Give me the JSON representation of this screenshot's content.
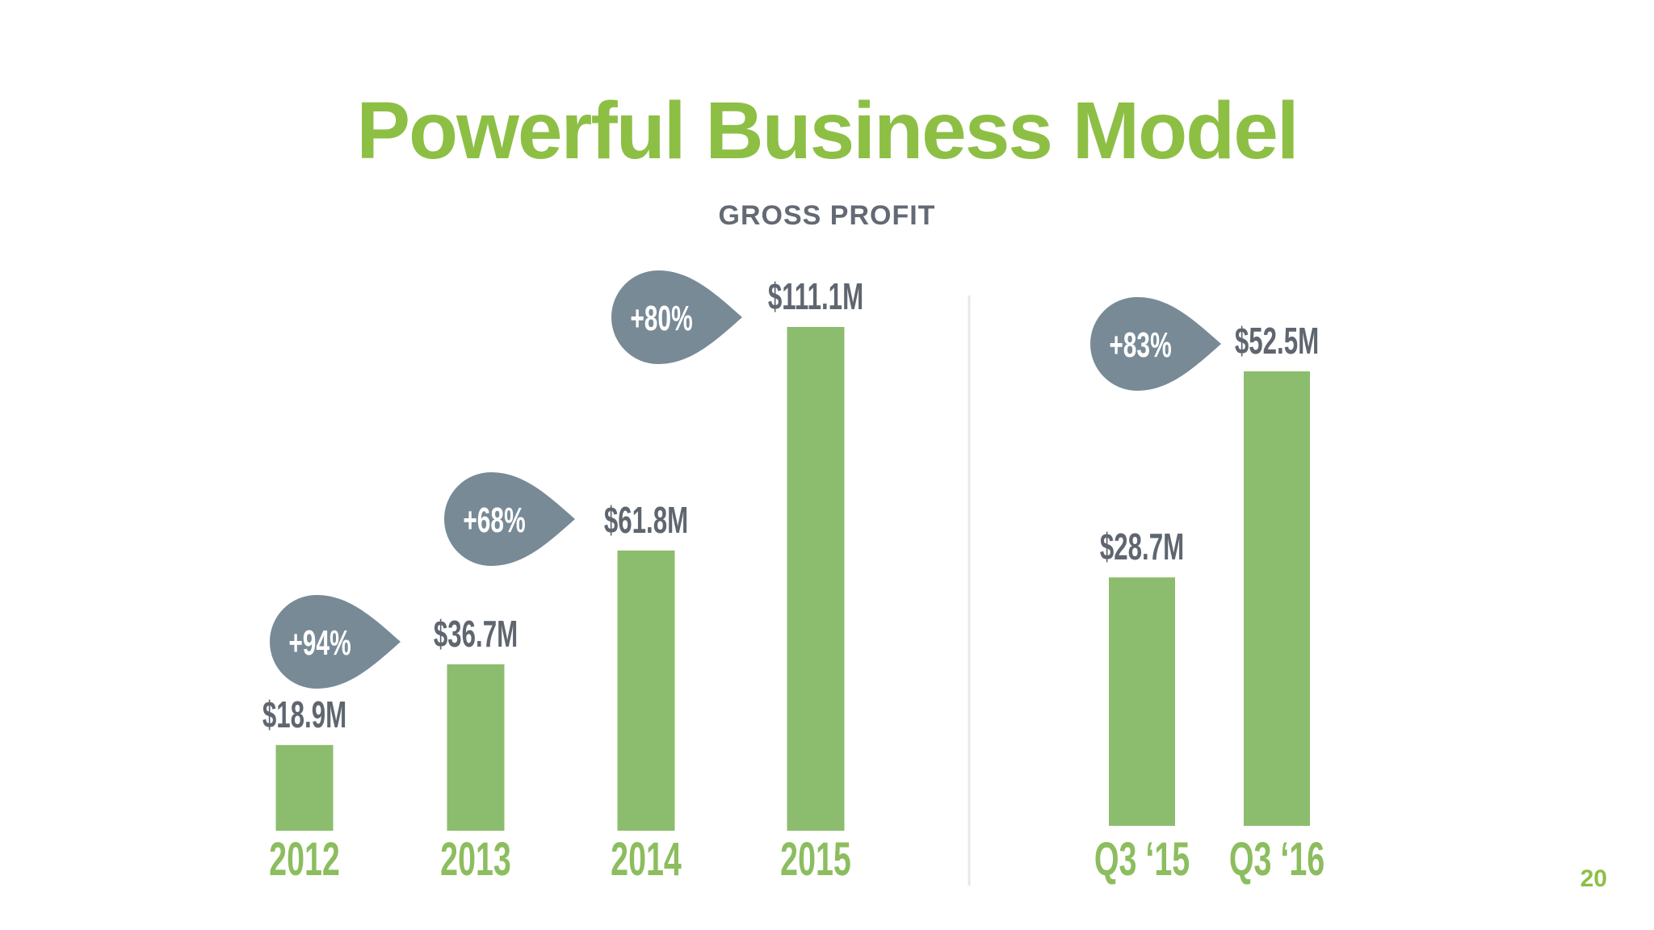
{
  "slide": {
    "title": "Powerful Business Model",
    "page_number": "20"
  },
  "chart_data": [
    {
      "type": "bar",
      "title": "GROSS PROFIT",
      "categories": [
        "2012",
        "2013",
        "2014",
        "2015"
      ],
      "values": [
        18.9,
        36.7,
        61.8,
        111.1
      ],
      "value_labels": [
        "$18.9M",
        "$36.7M",
        "$61.8M",
        "$111.1M"
      ],
      "growth_labels": [
        "+94%",
        "+68%",
        "+80%"
      ],
      "unit": "$M",
      "ylim": [
        0,
        111.1
      ],
      "grid": false,
      "colors": {
        "bar": "#8cbd6e",
        "growth_badge": "#778a96",
        "value_label": "#5f6670",
        "category_label": "#8cbd5e"
      }
    },
    {
      "type": "bar",
      "categories": [
        "Q3 ‘15",
        "Q3 ‘16"
      ],
      "values": [
        28.7,
        52.5
      ],
      "value_labels": [
        "$28.7M",
        "$52.5M"
      ],
      "growth_labels": [
        "+83%"
      ],
      "unit": "$M",
      "ylim": [
        0,
        52.5
      ],
      "grid": false,
      "colors": {
        "bar": "#8cbd6e",
        "growth_badge": "#778a96",
        "value_label": "#5f6670",
        "category_label": "#8cbd5e"
      }
    }
  ]
}
